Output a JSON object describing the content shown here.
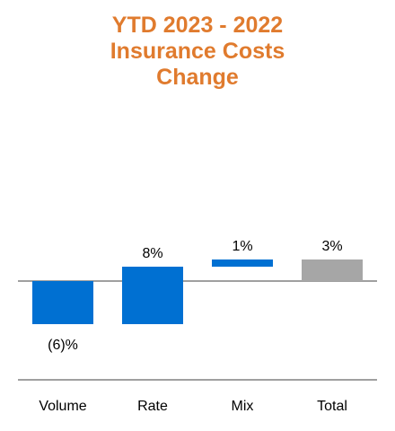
{
  "chart_data": {
    "type": "bar",
    "subtype": "waterfall",
    "title_lines": [
      "YTD 2023 - 2022",
      "Insurance Costs",
      "Change"
    ],
    "categories": [
      "Volume",
      "Rate",
      "Mix",
      "Total"
    ],
    "values": [
      -6,
      8,
      1,
      3
    ],
    "labels": [
      "(6)%",
      "8%",
      "1%",
      "3%"
    ],
    "unit": "%",
    "ylim": [
      -6,
      8
    ],
    "grid": false,
    "legend": "none"
  },
  "colors": {
    "title": "#E07B2E",
    "bar": "#0070D2",
    "total": "#A6A6A6",
    "axis": "#808080",
    "text": "#000000"
  }
}
